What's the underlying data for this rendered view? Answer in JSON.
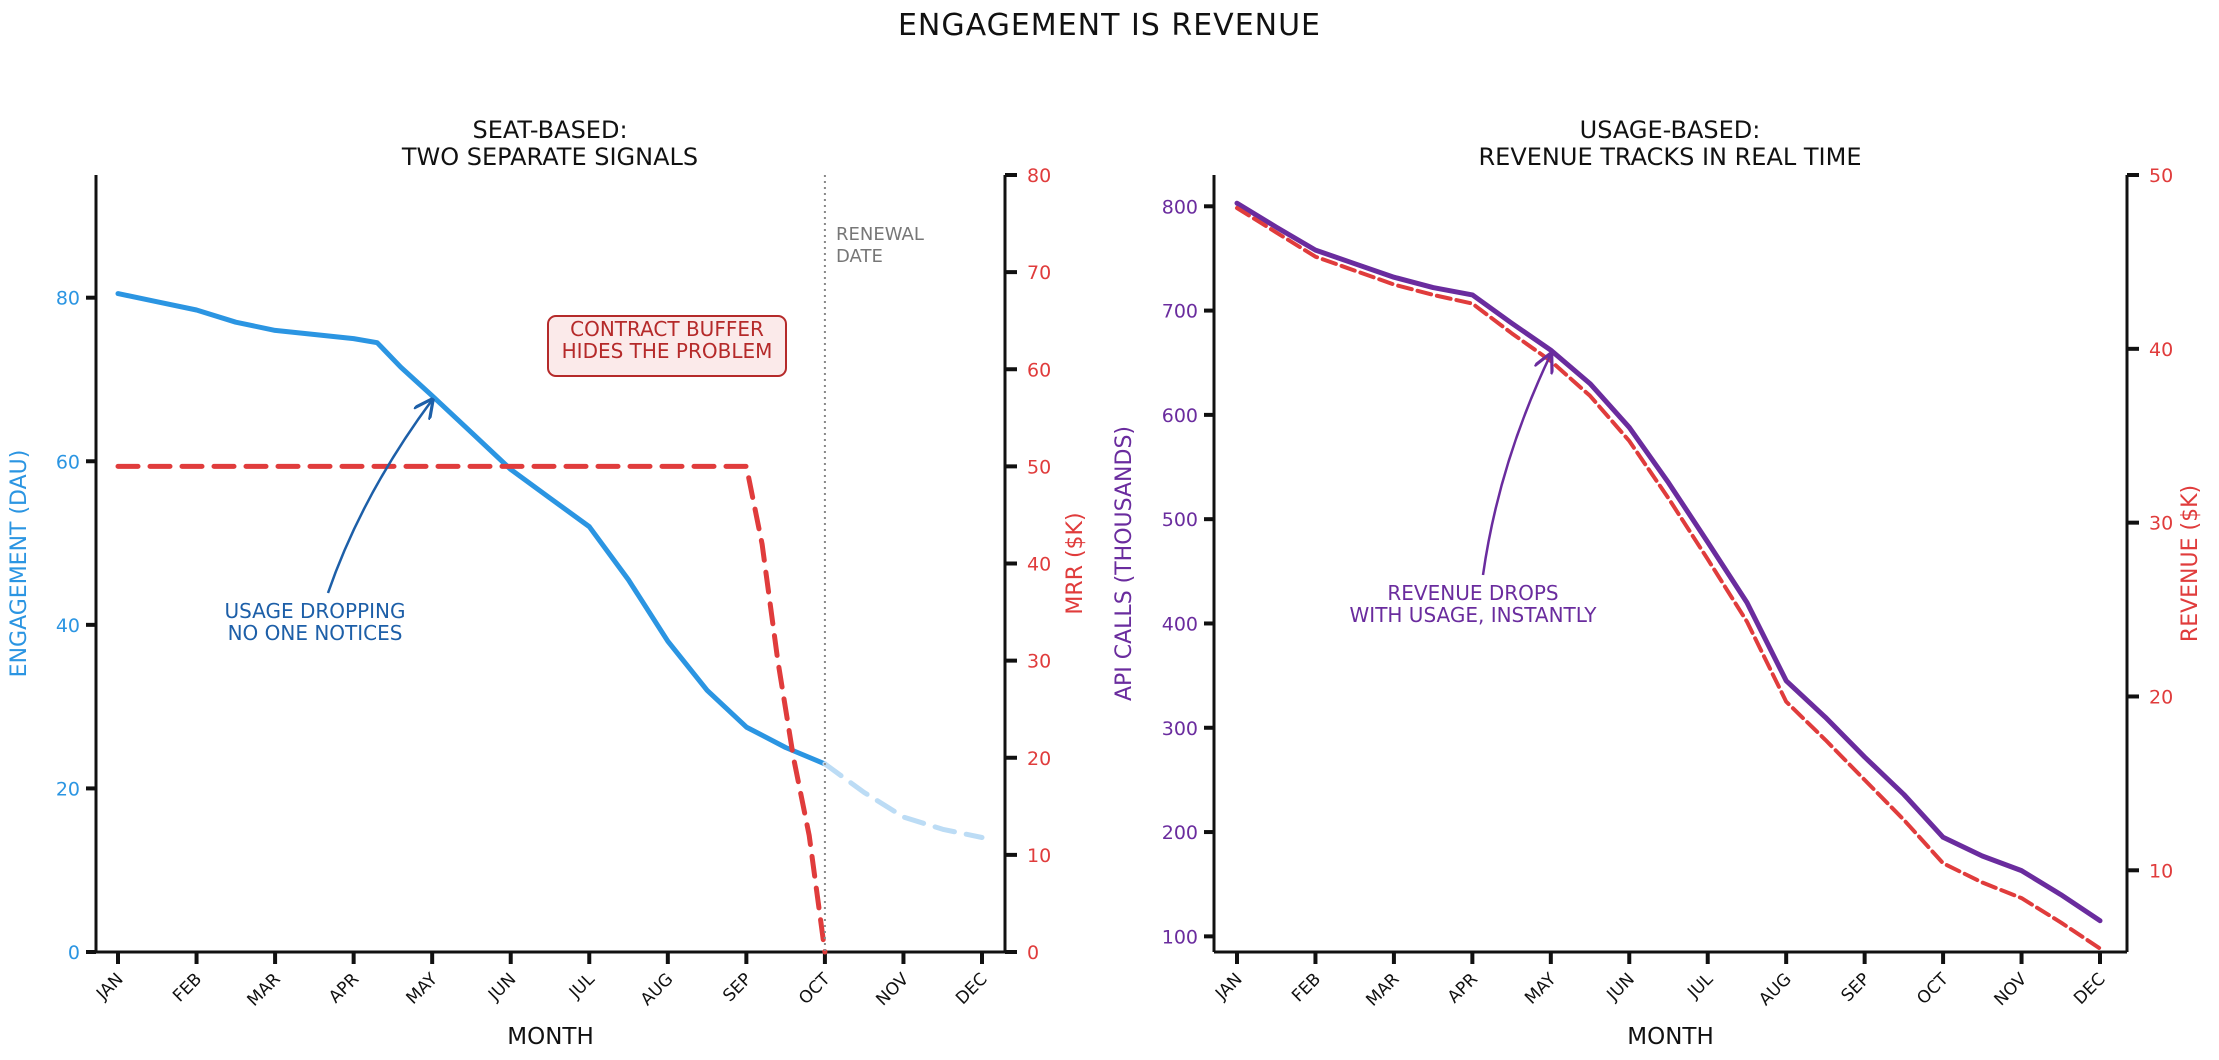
{
  "figure": {
    "title": "ENGAGEMENT IS REVENUE"
  },
  "chart_data": [
    {
      "type": "line",
      "title": "SEAT-BASED:\nTWO SEPARATE SIGNALS",
      "title_lines": [
        "SEAT-BASED:",
        "TWO SEPARATE SIGNALS"
      ],
      "xlabel": "MONTH",
      "ylabel_left": "ENGAGEMENT (DAU)",
      "ylabel_right": "MRR ($K)",
      "categories": [
        "JAN",
        "FEB",
        "MAR",
        "APR",
        "MAY",
        "JUN",
        "JUL",
        "AUG",
        "SEP",
        "OCT",
        "NOV",
        "DEC"
      ],
      "ylim_left": [
        0,
        95
      ],
      "yticks_left": [
        0,
        20,
        40,
        60,
        80
      ],
      "ylim_right": [
        0,
        80
      ],
      "yticks_right": [
        0,
        10,
        20,
        30,
        40,
        50,
        60,
        70,
        80
      ],
      "series": [
        {
          "axis": "left",
          "style": "solid",
          "color": "#2b95e2",
          "x": [
            0,
            0.5,
            1,
            1.5,
            2,
            2.5,
            3,
            3.3,
            3.6,
            4,
            4.5,
            5,
            5.5,
            6,
            6.5,
            7,
            7.5,
            8,
            8.5,
            9
          ],
          "values": [
            80.5,
            79.5,
            78.5,
            77,
            76,
            75.5,
            75,
            74.5,
            71.5,
            68,
            63.5,
            59,
            55.5,
            52,
            45.5,
            38,
            32,
            27.5,
            25,
            23
          ]
        },
        {
          "axis": "left",
          "style": "dashed",
          "color": "#bcdcf5",
          "x": [
            9,
            9.5,
            10,
            10.5,
            11
          ],
          "values": [
            23,
            19.5,
            16.5,
            15,
            14
          ]
        },
        {
          "axis": "right",
          "style": "dashed",
          "color": "#e03c3c",
          "x": [
            0,
            1,
            2,
            3,
            4,
            5,
            6,
            7,
            8,
            8.2,
            8.4,
            8.6,
            8.8,
            9
          ],
          "values": [
            50,
            50,
            50,
            50,
            50,
            50,
            50,
            50,
            50,
            42,
            30,
            20,
            12,
            0
          ]
        }
      ],
      "annotations": [
        {
          "text_lines": [
            "USAGE DROPPING",
            "NO ONE NOTICES"
          ],
          "color": "#1d5fa8",
          "arrow_to": [
            4,
            68
          ]
        },
        {
          "text_lines": [
            "CONTRACT BUFFER",
            "HIDES THE PROBLEM"
          ],
          "color": "#b52a2a",
          "box": true
        },
        {
          "text_lines": [
            "RENEWAL",
            "DATE"
          ],
          "color": "#777777",
          "vline_x": 9
        }
      ],
      "colors": {
        "left_axis": "#2b95e2",
        "right_axis": "#e03c3c"
      }
    },
    {
      "type": "line",
      "title": "USAGE-BASED:\nREVENUE TRACKS IN REAL TIME",
      "title_lines": [
        "USAGE-BASED:",
        "REVENUE TRACKS IN REAL TIME"
      ],
      "xlabel": "MONTH",
      "ylabel_left": "API CALLS (THOUSANDS)",
      "ylabel_right": "REVENUE ($K)",
      "categories": [
        "JAN",
        "FEB",
        "MAR",
        "APR",
        "MAY",
        "JUN",
        "JUL",
        "AUG",
        "SEP",
        "OCT",
        "NOV",
        "DEC"
      ],
      "ylim_left": [
        85,
        830
      ],
      "yticks_left": [
        100,
        200,
        300,
        400,
        500,
        600,
        700,
        800
      ],
      "ylim_right": [
        5.3,
        50
      ],
      "yticks_right": [
        10,
        20,
        30,
        40,
        50
      ],
      "series": [
        {
          "axis": "left",
          "style": "solid",
          "color": "#6a2c9e",
          "x": [
            0,
            0.5,
            1,
            1.5,
            2,
            2.5,
            3,
            3.5,
            4,
            4.5,
            5,
            5.5,
            6,
            6.5,
            7,
            7.5,
            8,
            8.5,
            9,
            9.5,
            10,
            10.5,
            11
          ],
          "values": [
            803,
            780,
            758,
            745,
            732,
            722,
            715,
            688,
            662,
            630,
            588,
            535,
            478,
            420,
            345,
            310,
            272,
            236,
            195,
            177,
            163,
            140,
            115
          ]
        },
        {
          "axis": "right",
          "style": "dashed-overlay",
          "color": "#e03c3c",
          "x": [
            0,
            0.5,
            1,
            1.5,
            2,
            2.5,
            3,
            3.5,
            4,
            4.5,
            5,
            5.5,
            6,
            6.5,
            7,
            7.5,
            8,
            8.5,
            9,
            9.5,
            10,
            10.5,
            11
          ],
          "values": [
            48.1,
            46.7,
            45.3,
            44.5,
            43.7,
            43.1,
            42.6,
            40.9,
            39.3,
            37.3,
            34.7,
            31.4,
            27.9,
            24.3,
            19.7,
            17.5,
            15.2,
            12.9,
            10.4,
            9.3,
            8.4,
            7.0,
            5.5
          ]
        }
      ],
      "annotations": [
        {
          "text_lines": [
            "REVENUE DROPS",
            "WITH USAGE, INSTANTLY"
          ],
          "color": "#6a2c9e",
          "arrow_to": [
            4,
            662
          ]
        }
      ],
      "colors": {
        "left_axis": "#6a2c9e",
        "right_axis": "#e03c3c"
      }
    }
  ]
}
